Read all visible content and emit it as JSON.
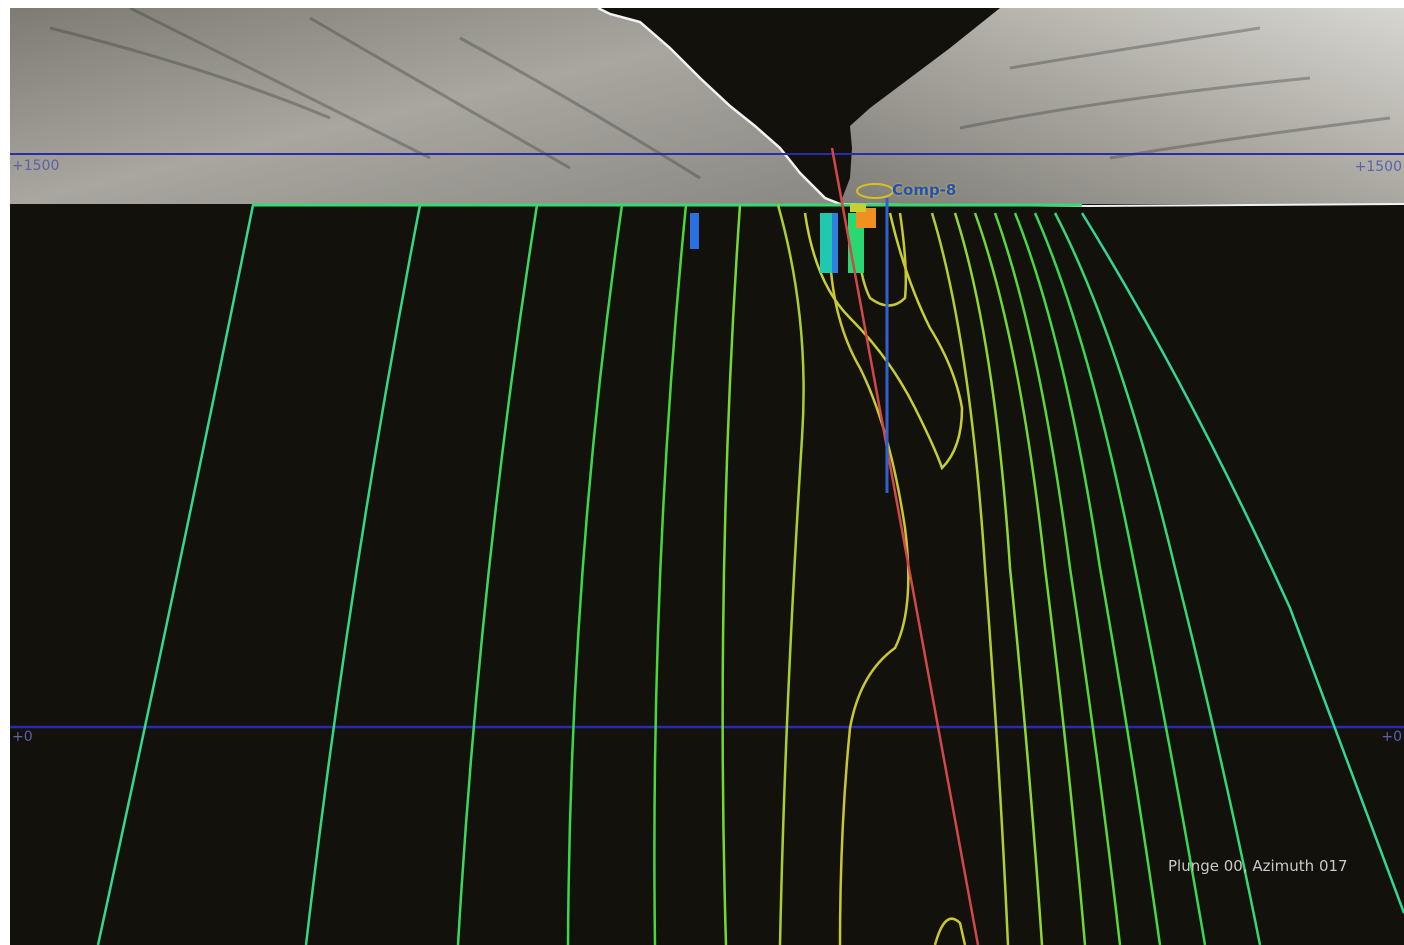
{
  "elevation_labels": {
    "upper_left": "+1500",
    "upper_right": "+1500",
    "lower_left": "+0",
    "lower_right": "+0"
  },
  "drillhole": {
    "label": "Comp-8"
  },
  "view": {
    "orientation_text": "Plunge 00, Azimuth 017"
  },
  "colors": {
    "background": "#13110b",
    "elevation_line": "#2a2ab0",
    "contour_outer": "#33d890",
    "contour_mid": "#3ad83a",
    "contour_inner": "#c8d030",
    "drill_trace": "#d04848",
    "drill_hole": "#3060d0"
  }
}
